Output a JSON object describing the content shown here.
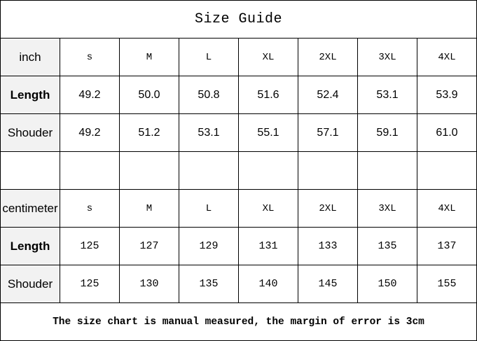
{
  "title": "Size Guide",
  "sizes": [
    "s",
    "M",
    "L",
    "XL",
    "2XL",
    "3XL",
    "4XL"
  ],
  "inch": {
    "label": "inch",
    "rows": [
      {
        "label": "Length",
        "values": [
          "49.2",
          "50.0",
          "50.8",
          "51.6",
          "52.4",
          "53.1",
          "53.9"
        ]
      },
      {
        "label": "Shouder",
        "values": [
          "49.2",
          "51.2",
          "53.1",
          "55.1",
          "57.1",
          "59.1",
          "61.0"
        ]
      }
    ]
  },
  "centimeter": {
    "label": "centimeter",
    "rows": [
      {
        "label": "Length",
        "values": [
          "125",
          "127",
          "129",
          "131",
          "133",
          "135",
          "137"
        ]
      },
      {
        "label": "Shouder",
        "values": [
          "125",
          "130",
          "135",
          "140",
          "145",
          "150",
          "155"
        ]
      }
    ]
  },
  "footnote": "The size chart is manual measured, the margin of error is 3cm",
  "colors": {
    "label_background": "#f2f2f2",
    "border": "#000000"
  }
}
